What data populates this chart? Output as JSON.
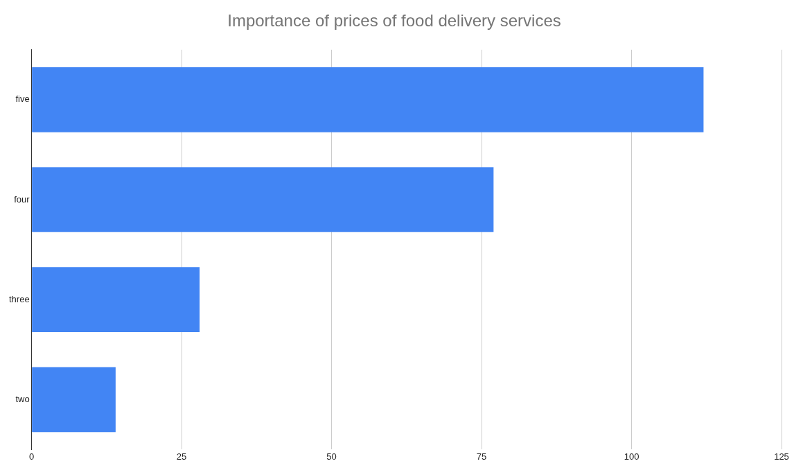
{
  "chart_data": {
    "type": "bar",
    "orientation": "horizontal",
    "title": "Importance of prices of food delivery services",
    "categories": [
      "five",
      "four",
      "three",
      "two"
    ],
    "values": [
      112,
      77,
      28,
      14
    ],
    "color": "#4285f4",
    "xlim": [
      0,
      125
    ],
    "xticks": [
      0,
      25,
      50,
      75,
      100,
      125
    ],
    "grid": "x",
    "legend": false
  }
}
